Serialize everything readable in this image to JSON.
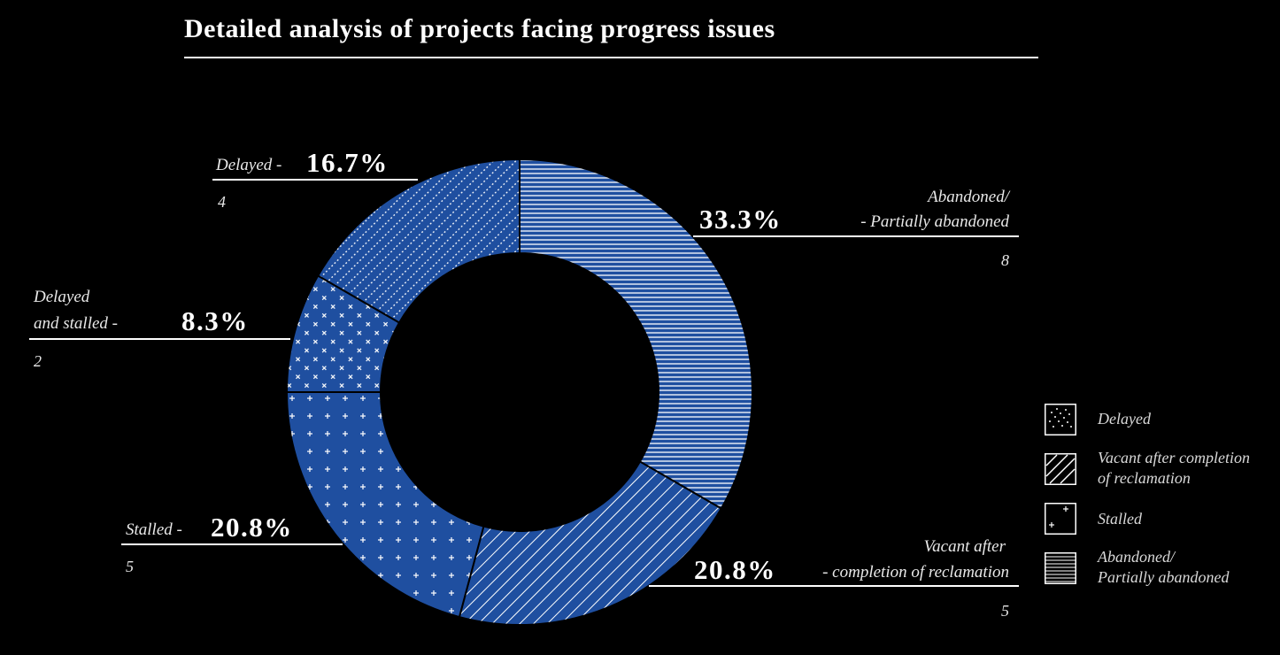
{
  "title": "Detailed analysis of projects facing progress issues",
  "colors": {
    "slice": "#1f4fa0",
    "pattern": "#ffffff",
    "background": "#000000"
  },
  "chart_data": {
    "type": "pie",
    "variant": "donut",
    "title": "Detailed analysis of projects facing progress issues",
    "slices": [
      {
        "key": "abandoned",
        "name": "Abandoned/ Partially abandoned",
        "value": 8,
        "percent": 33.3,
        "pattern": "horizontal-lines"
      },
      {
        "key": "vacant",
        "name": "Vacant after completion of reclamation",
        "value": 5,
        "percent": 20.8,
        "pattern": "diagonal-lines"
      },
      {
        "key": "stalled",
        "name": "Stalled",
        "value": 5,
        "percent": 20.8,
        "pattern": "plus"
      },
      {
        "key": "delayed_stalled",
        "name": "Delayed and stalled",
        "value": 2,
        "percent": 8.3,
        "pattern": "plus-diagonal"
      },
      {
        "key": "delayed",
        "name": "Delayed",
        "value": 4,
        "percent": 16.7,
        "pattern": "dotted-diagonal"
      }
    ],
    "labels": {
      "delayed": {
        "text": "Delayed -",
        "pct": "16.7%",
        "count": "4"
      },
      "delayed_stalled": {
        "line1": "Delayed",
        "line2": "and stalled -",
        "pct": "8.3%",
        "count": "2"
      },
      "stalled": {
        "text": "Stalled -",
        "pct": "20.8%",
        "count": "5"
      },
      "abandoned": {
        "line1": "Abandoned/",
        "line2": "- Partially abandoned",
        "pct": "33.3%",
        "count": "8"
      },
      "vacant": {
        "line1": "Vacant after",
        "line2": "- completion of reclamation",
        "pct": "20.8%",
        "count": "5"
      }
    },
    "legend": [
      {
        "label": "Delayed",
        "pattern": "dotted-diagonal"
      },
      {
        "label1": "Vacant after completion",
        "label2": "of reclamation",
        "pattern": "diagonal-lines"
      },
      {
        "label": "Stalled",
        "pattern": "plus"
      },
      {
        "label1": "Abandoned/",
        "label2": "Partially abandoned",
        "pattern": "horizontal-lines"
      }
    ]
  }
}
